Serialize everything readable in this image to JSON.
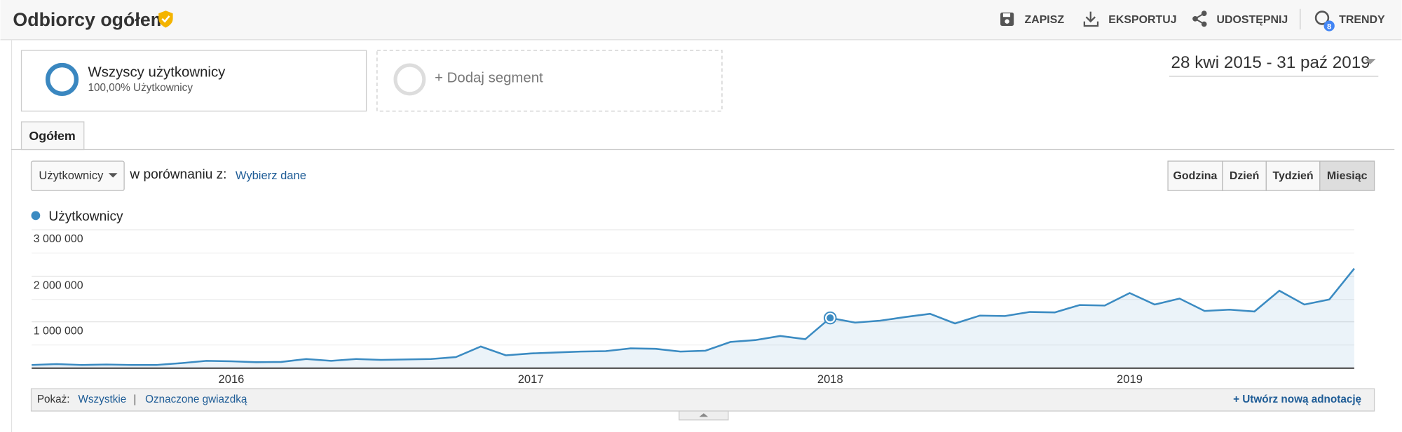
{
  "header": {
    "title": "Odbiorcy ogółem",
    "actions": [
      "ZAPISZ",
      "EKSPORTUJ",
      "UDOSTĘPNIJ",
      "TRENDY"
    ],
    "trends_badge": "8"
  },
  "segments": [
    {
      "name": "Wszyscy użytkownicy",
      "detail": "100,00% Użytkownicy"
    }
  ],
  "add_segment": "+ Dodaj segment",
  "date_range": "28 kwi 2015 - 31 paź 2019",
  "tab": "Ogółem",
  "controls": {
    "metric": "Użytkownicy",
    "compare_label": "w porównaniu z:",
    "compare_link": "Wybierz dane",
    "granularity": [
      "Godzina",
      "Dzień",
      "Tydzień",
      "Miesiąc"
    ],
    "selected_granularity": 3
  },
  "chart_data": {
    "type": "line",
    "categories": [
      null,
      null,
      null,
      null,
      null,
      null,
      null,
      null,
      "2016",
      null,
      null,
      null,
      null,
      null,
      null,
      null,
      null,
      null,
      null,
      null,
      "2017",
      null,
      null,
      null,
      null,
      null,
      null,
      null,
      null,
      null,
      null,
      null,
      "2018",
      null,
      null,
      null,
      null,
      null,
      null,
      null,
      null,
      null,
      null,
      null,
      "2019",
      null,
      null,
      null,
      null,
      null,
      null,
      null,
      null,
      null
    ],
    "series": [
      {
        "name": "Użytkownicy",
        "color": "#3b8bc2",
        "values": [
          60000,
          80000,
          60000,
          70000,
          60000,
          60000,
          100000,
          150000,
          140000,
          120000,
          125000,
          190000,
          150000,
          190000,
          170000,
          180000,
          190000,
          230000,
          460000,
          270000,
          310000,
          330000,
          350000,
          360000,
          420000,
          410000,
          350000,
          370000,
          560000,
          600000,
          690000,
          620000,
          1080000,
          980000,
          1020000,
          1100000,
          1170000,
          960000,
          1130000,
          1120000,
          1210000,
          1200000,
          1360000,
          1350000,
          1620000,
          1370000,
          1500000,
          1230000,
          1260000,
          1220000,
          1670000,
          1370000,
          1480000,
          2150000
        ]
      }
    ],
    "ylim": [
      0,
      3000000
    ],
    "yticks": [
      {
        "value": 1000000,
        "label": "1 000 000"
      },
      {
        "value": 2000000,
        "label": "2 000 000"
      },
      {
        "value": 3000000,
        "label": "3 000 000"
      }
    ],
    "minor_yticks": [
      500000,
      1500000,
      2500000
    ],
    "grid": true,
    "highlight_index": 32
  },
  "annotations": {
    "show_label": "Pokaż:",
    "filters": [
      "Wszystkie",
      "Oznaczone gwiazdką"
    ],
    "create_link": "+ Utwórz nową adnotację"
  }
}
